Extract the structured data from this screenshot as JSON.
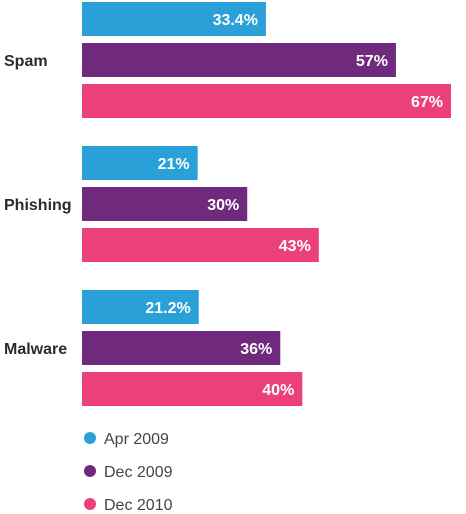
{
  "chart_data": {
    "type": "bar",
    "orientation": "horizontal",
    "categories": [
      "Spam",
      "Phishing",
      "Malware"
    ],
    "series": [
      {
        "name": "Apr 2009",
        "color": "#2aa0d8",
        "values": [
          33.4,
          21,
          21.2
        ],
        "labels": [
          "33.4%",
          "21%",
          "21.2%"
        ]
      },
      {
        "name": "Dec 2009",
        "color": "#6f2a7e",
        "values": [
          57,
          30,
          36
        ],
        "labels": [
          "57%",
          "30%",
          "36%"
        ]
      },
      {
        "name": "Dec 2010",
        "color": "#ec407a",
        "values": [
          67,
          43,
          40
        ],
        "labels": [
          "67%",
          "43%",
          "40%"
        ]
      }
    ],
    "xlim": [
      0,
      67
    ],
    "value_unit": "%",
    "legend_position": "bottom-left",
    "grid": false,
    "xaxis_visible": false
  }
}
